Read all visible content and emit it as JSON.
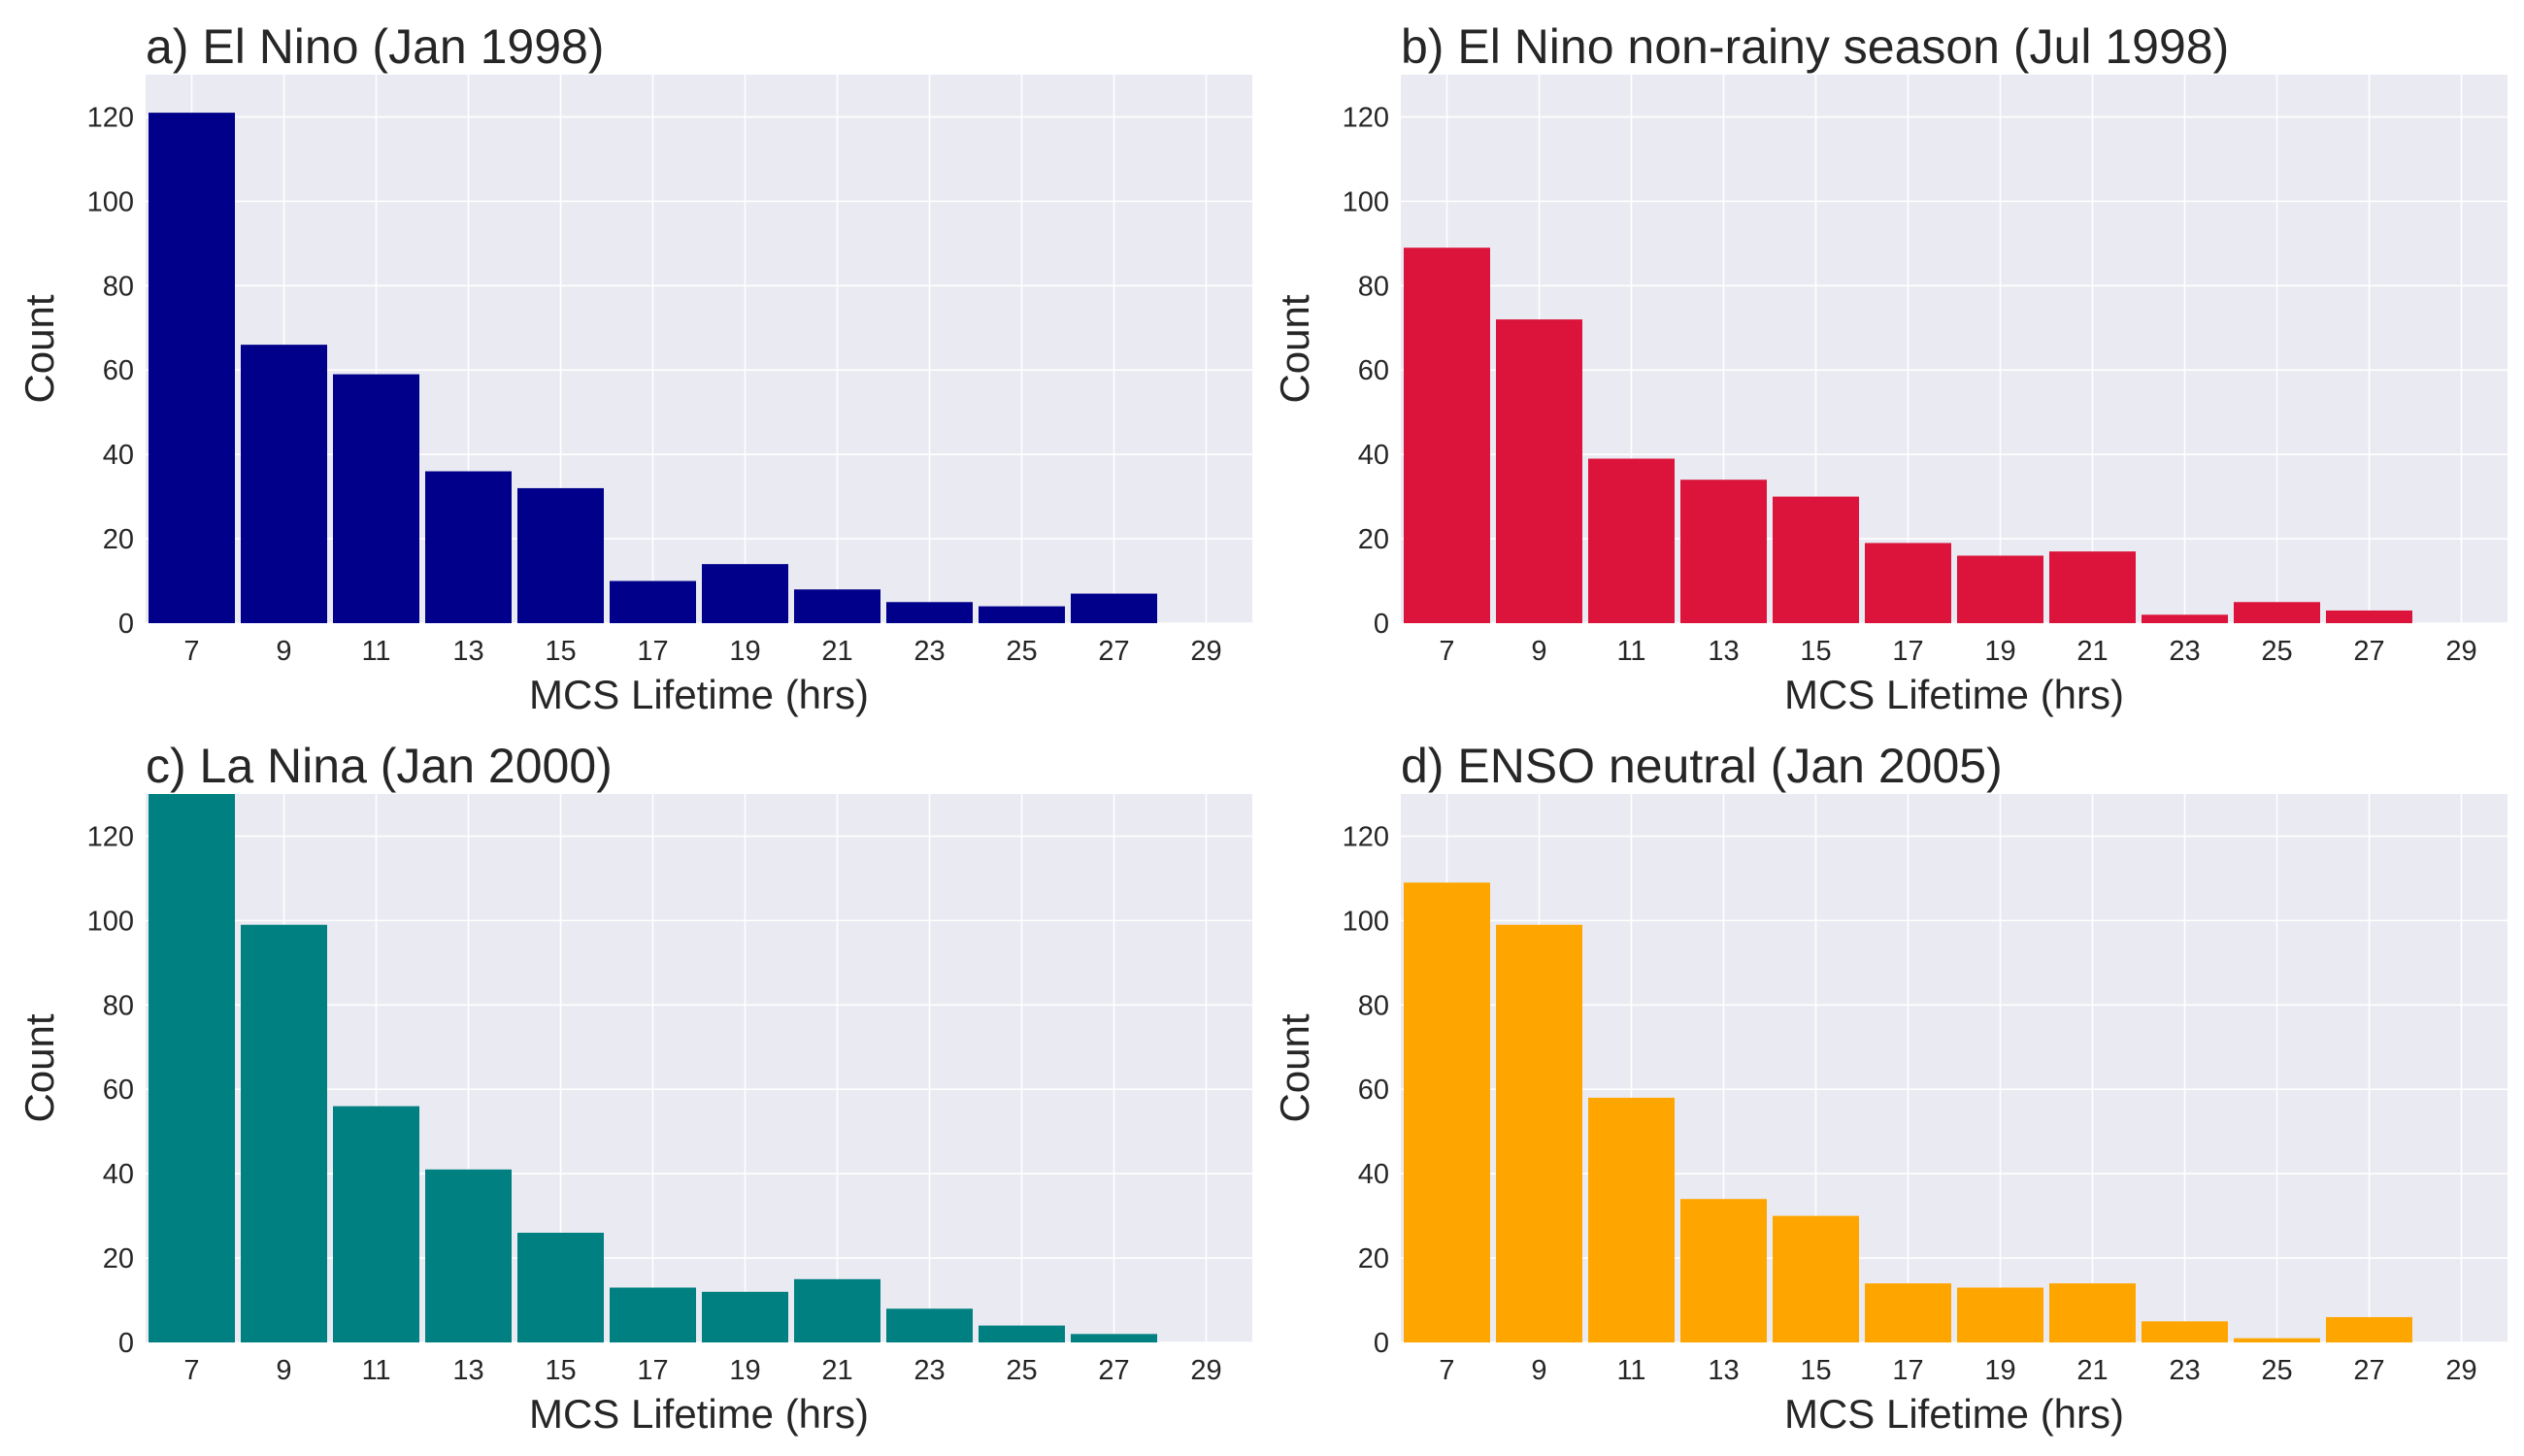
{
  "chart_data": [
    {
      "type": "bar",
      "title": "a) El Nino (Jan 1998)",
      "xlabel": "MCS Lifetime (hrs)",
      "ylabel": "Count",
      "x_ticks": [
        "7",
        "9",
        "11",
        "13",
        "15",
        "17",
        "19",
        "21",
        "23",
        "25",
        "27",
        "29"
      ],
      "y_ticks": [
        "0",
        "20",
        "40",
        "60",
        "80",
        "100",
        "120"
      ],
      "bin_edges": [
        6,
        8,
        10,
        12,
        14,
        16,
        18,
        20,
        22,
        24,
        26,
        28
      ],
      "values": [
        121,
        66,
        59,
        36,
        32,
        10,
        14,
        8,
        5,
        4,
        7
      ],
      "xlim": [
        6,
        30
      ],
      "ylim": [
        0,
        130
      ],
      "color": "#00008B",
      "grid": true
    },
    {
      "type": "bar",
      "title": "b) El Nino non-rainy season (Jul 1998)",
      "xlabel": "MCS Lifetime (hrs)",
      "ylabel": "Count",
      "x_ticks": [
        "7",
        "9",
        "11",
        "13",
        "15",
        "17",
        "19",
        "21",
        "23",
        "25",
        "27",
        "29"
      ],
      "y_ticks": [
        "0",
        "20",
        "40",
        "60",
        "80",
        "100",
        "120"
      ],
      "bin_edges": [
        6,
        8,
        10,
        12,
        14,
        16,
        18,
        20,
        22,
        24,
        26,
        28
      ],
      "values": [
        89,
        72,
        39,
        34,
        30,
        19,
        16,
        17,
        2,
        5,
        3
      ],
      "xlim": [
        6,
        30
      ],
      "ylim": [
        0,
        130
      ],
      "color": "#DC143C",
      "grid": true
    },
    {
      "type": "bar",
      "title": "c) La Nina (Jan 2000)",
      "xlabel": "MCS Lifetime (hrs)",
      "ylabel": "Count",
      "x_ticks": [
        "7",
        "9",
        "11",
        "13",
        "15",
        "17",
        "19",
        "21",
        "23",
        "25",
        "27",
        "29"
      ],
      "y_ticks": [
        "0",
        "20",
        "40",
        "60",
        "80",
        "100",
        "120"
      ],
      "bin_edges": [
        6,
        8,
        10,
        12,
        14,
        16,
        18,
        20,
        22,
        24,
        26,
        28
      ],
      "values": [
        130,
        99,
        56,
        41,
        26,
        13,
        12,
        15,
        8,
        4,
        2
      ],
      "xlim": [
        6,
        30
      ],
      "ylim": [
        0,
        130
      ],
      "color": "#008080",
      "grid": true
    },
    {
      "type": "bar",
      "title": "d) ENSO neutral (Jan 2005)",
      "xlabel": "MCS Lifetime (hrs)",
      "ylabel": "Count",
      "x_ticks": [
        "7",
        "9",
        "11",
        "13",
        "15",
        "17",
        "19",
        "21",
        "23",
        "25",
        "27",
        "29"
      ],
      "y_ticks": [
        "0",
        "20",
        "40",
        "60",
        "80",
        "100",
        "120"
      ],
      "bin_edges": [
        6,
        8,
        10,
        12,
        14,
        16,
        18,
        20,
        22,
        24,
        26,
        28
      ],
      "values": [
        109,
        99,
        58,
        34,
        30,
        14,
        13,
        14,
        5,
        1,
        6
      ],
      "xlim": [
        6,
        30
      ],
      "ylim": [
        0,
        130
      ],
      "color": "#FFA500",
      "grid": true
    }
  ]
}
